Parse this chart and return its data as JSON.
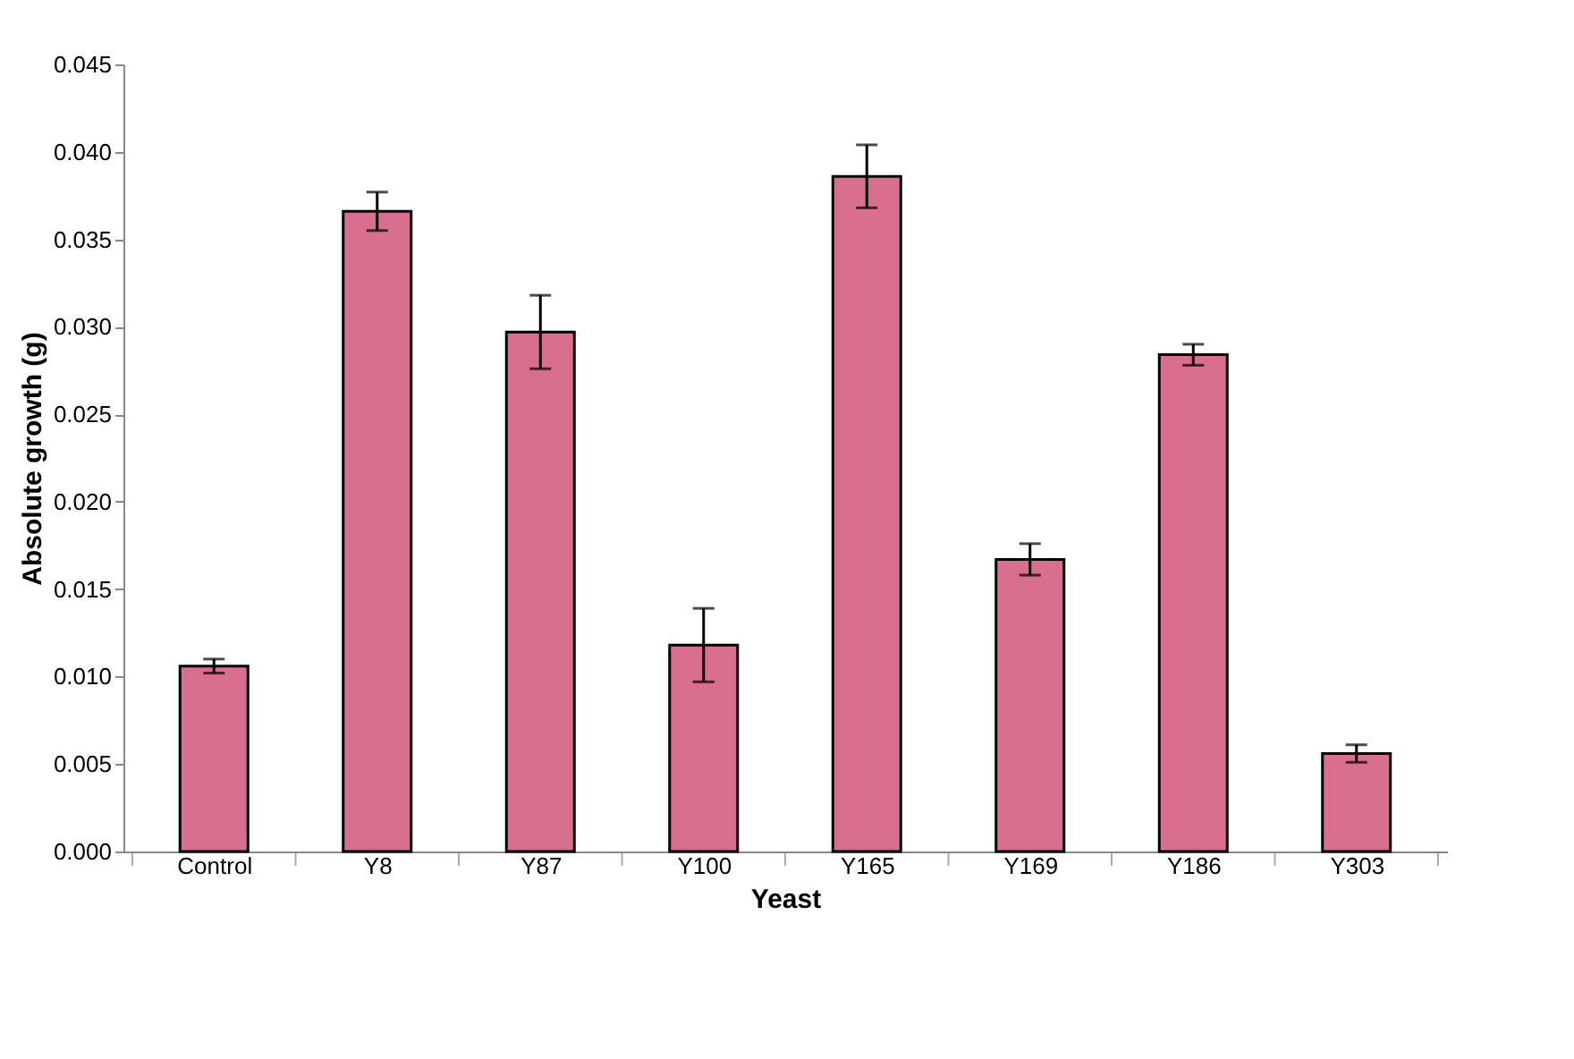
{
  "chart_data": {
    "type": "bar",
    "xlabel": "Yeast",
    "ylabel": "Absolute growth (g)",
    "categories": [
      "Control",
      "Y8",
      "Y87",
      "Y100",
      "Y165",
      "Y169",
      "Y186",
      "Y303"
    ],
    "values": [
      0.0106,
      0.0366,
      0.0297,
      0.0118,
      0.0386,
      0.0167,
      0.0284,
      0.0056
    ],
    "errors": [
      0.0004,
      0.0011,
      0.0021,
      0.0021,
      0.0018,
      0.0009,
      0.0006,
      0.0005
    ],
    "color": "#d96f8e",
    "ylim": [
      0,
      0.045
    ],
    "yticks": [
      {
        "value": 0,
        "label": "0.000"
      },
      {
        "value": 0.005,
        "label": "0.005"
      },
      {
        "value": 0.01,
        "label": "0.010"
      },
      {
        "value": 0.015,
        "label": "0.015"
      },
      {
        "value": 0.02,
        "label": "0.020"
      },
      {
        "value": 0.025,
        "label": "0.025"
      },
      {
        "value": 0.03,
        "label": "0.030"
      },
      {
        "value": 0.035,
        "label": "0.035"
      },
      {
        "value": 0.04,
        "label": "0.040"
      },
      {
        "value": 0.045,
        "label": "0.045"
      }
    ],
    "grid": false
  }
}
